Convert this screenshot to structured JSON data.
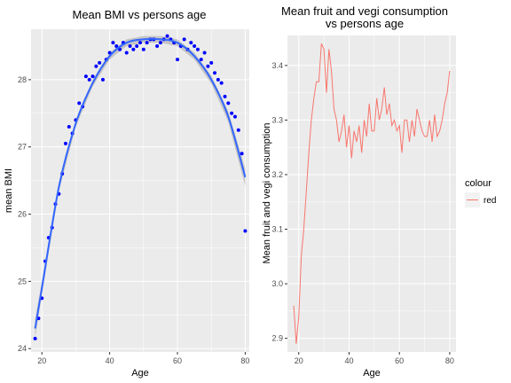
{
  "chart_data": [
    {
      "type": "scatter",
      "title": "Mean BMI vs persons age",
      "xlabel": "Age",
      "ylabel": "mean BMI",
      "xlim": [
        16.8,
        81.2
      ],
      "ylim": [
        23.95,
        28.75
      ],
      "xticks": [
        20,
        40,
        60,
        80
      ],
      "yticks": [
        24,
        25,
        26,
        27,
        28
      ],
      "colors": {
        "points": "#0000ff",
        "smooth": "#3366ff",
        "band": "#b3b3b3",
        "panel": "#ebebeb",
        "grid": "#ffffff"
      },
      "grid": true,
      "x": [
        18,
        19,
        20,
        21,
        22,
        23,
        24,
        25,
        26,
        27,
        28,
        29,
        30,
        31,
        32,
        33,
        34,
        35,
        36,
        37,
        38,
        39,
        40,
        41,
        42,
        43,
        44,
        45,
        46,
        47,
        48,
        49,
        50,
        51,
        52,
        53,
        54,
        55,
        56,
        57,
        58,
        59,
        60,
        61,
        62,
        63,
        64,
        65,
        66,
        67,
        68,
        69,
        70,
        71,
        72,
        73,
        74,
        75,
        76,
        77,
        78,
        79,
        80
      ],
      "y": [
        24.15,
        24.45,
        24.75,
        25.3,
        25.65,
        25.8,
        26.15,
        26.3,
        26.6,
        27.05,
        27.3,
        27.2,
        27.4,
        27.65,
        27.6,
        28.05,
        28.0,
        28.05,
        28.2,
        28.25,
        28.0,
        28.3,
        28.4,
        28.55,
        28.5,
        28.45,
        28.55,
        28.4,
        28.5,
        28.45,
        28.5,
        28.55,
        28.45,
        28.55,
        28.6,
        28.6,
        28.5,
        28.55,
        28.6,
        28.65,
        28.6,
        28.55,
        28.3,
        28.5,
        28.6,
        28.45,
        28.55,
        28.5,
        28.45,
        28.3,
        28.4,
        28.2,
        28.25,
        28.1,
        28.0,
        27.95,
        27.75,
        27.65,
        27.5,
        27.45,
        27.25,
        26.9,
        25.75
      ],
      "smooth": {
        "x": [
          18,
          20,
          25,
          30,
          35,
          40,
          45,
          50,
          55,
          60,
          65,
          70,
          75,
          80
        ],
        "y": [
          24.3,
          24.9,
          26.4,
          27.35,
          27.95,
          28.35,
          28.55,
          28.6,
          28.6,
          28.55,
          28.35,
          28.0,
          27.45,
          26.55
        ],
        "se": [
          0.14,
          0.1,
          0.06,
          0.05,
          0.05,
          0.05,
          0.05,
          0.05,
          0.05,
          0.05,
          0.05,
          0.06,
          0.08,
          0.13
        ]
      }
    },
    {
      "type": "line",
      "title": "Mean fruit and vegi consumption\nvs persons age",
      "xlabel": "Age",
      "ylabel": "Mean fruit and vegi consumption",
      "xlim": [
        15.5,
        82.5
      ],
      "ylim": [
        2.875,
        3.455
      ],
      "xticks": [
        20,
        40,
        60,
        80
      ],
      "yticks": [
        2.9,
        3.0,
        3.1,
        3.2,
        3.3,
        3.4
      ],
      "grid": true,
      "legend": {
        "title": "colour",
        "entries": [
          "red"
        ],
        "position": "right"
      },
      "colors": {
        "line": "#f8766d",
        "panel": "#ebebeb",
        "grid": "#ffffff"
      },
      "x": [
        18,
        19,
        20,
        21,
        22,
        23,
        24,
        25,
        26,
        27,
        28,
        29,
        30,
        31,
        32,
        33,
        34,
        35,
        36,
        37,
        38,
        39,
        40,
        41,
        42,
        43,
        44,
        45,
        46,
        47,
        48,
        49,
        50,
        51,
        52,
        53,
        54,
        55,
        56,
        57,
        58,
        59,
        60,
        61,
        62,
        63,
        64,
        65,
        66,
        67,
        68,
        69,
        70,
        71,
        72,
        73,
        74,
        75,
        76,
        77,
        78,
        79,
        80
      ],
      "y": [
        2.96,
        2.89,
        2.94,
        3.05,
        3.1,
        3.17,
        3.24,
        3.3,
        3.34,
        3.37,
        3.37,
        3.44,
        3.43,
        3.35,
        3.43,
        3.39,
        3.32,
        3.3,
        3.26,
        3.28,
        3.31,
        3.25,
        3.29,
        3.23,
        3.28,
        3.26,
        3.29,
        3.24,
        3.3,
        3.27,
        3.33,
        3.28,
        3.28,
        3.34,
        3.3,
        3.32,
        3.36,
        3.31,
        3.33,
        3.29,
        3.3,
        3.28,
        3.29,
        3.24,
        3.3,
        3.3,
        3.26,
        3.3,
        3.27,
        3.32,
        3.3,
        3.28,
        3.27,
        3.27,
        3.3,
        3.26,
        3.31,
        3.27,
        3.28,
        3.3,
        3.33,
        3.35,
        3.39
      ]
    }
  ]
}
